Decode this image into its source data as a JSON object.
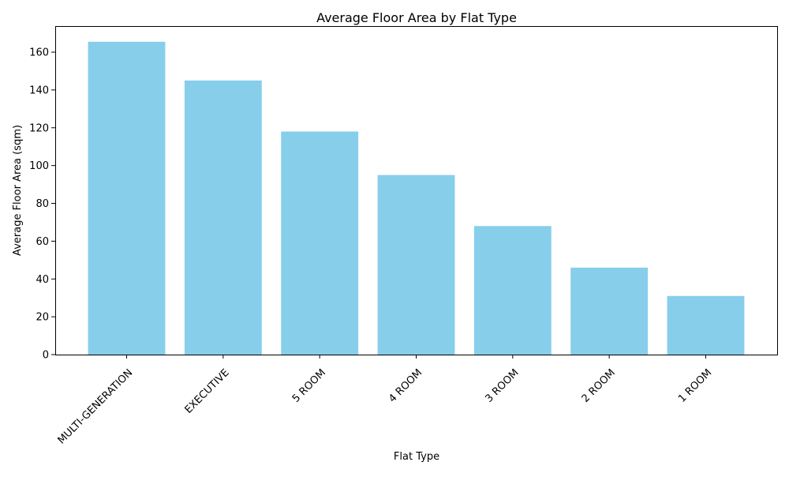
{
  "chart_data": {
    "type": "bar",
    "title": "Average Floor Area by Flat Type",
    "xlabel": "Flat Type",
    "ylabel": "Average Floor Area (sqm)",
    "categories": [
      "MULTI-GENERATION",
      "EXECUTIVE",
      "5 ROOM",
      "4 ROOM",
      "3 ROOM",
      "2 ROOM",
      "1 ROOM"
    ],
    "values": [
      165.5,
      145,
      118,
      95,
      68,
      46,
      31
    ],
    "ylim": [
      0,
      173.8
    ],
    "yticks": [
      0,
      20,
      40,
      60,
      80,
      100,
      120,
      140,
      160
    ],
    "bar_color": "#87CEEB",
    "grid": false,
    "legend": false
  }
}
